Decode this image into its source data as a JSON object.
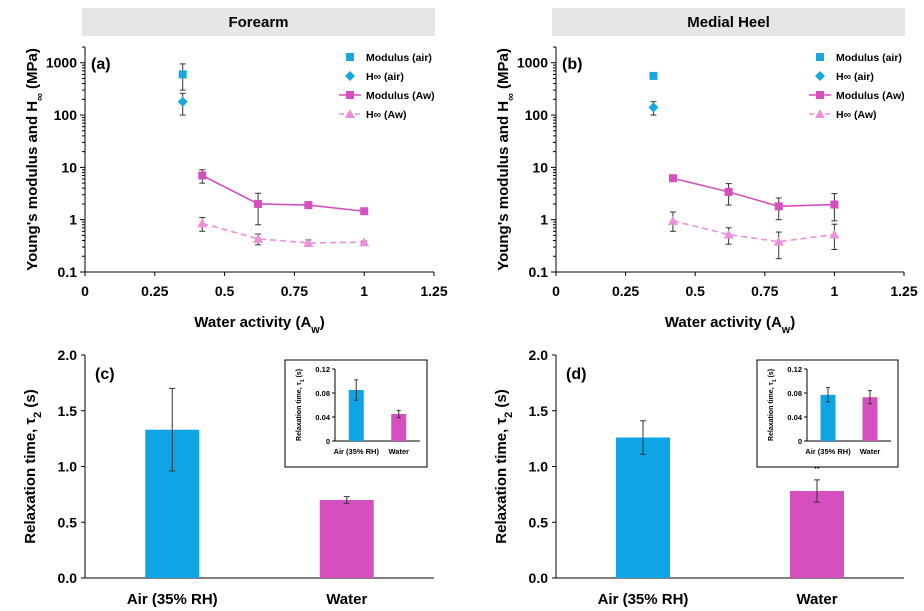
{
  "headers": {
    "left": "Forearm",
    "right": "Medial Heel"
  },
  "colors": {
    "blue": "#1aa7e0",
    "magenta": "#d64fbf",
    "pink": "#ee8fdc",
    "inset_blue": "#0fa5e5"
  },
  "chart_data": [
    {
      "panel": "(a)",
      "type": "scatter",
      "xlabel": "Water activity (A",
      "xlabel_sub": "w",
      "xlabel_end": ")",
      "ylabel": "Young's modulus and H",
      "ylabel_sub": "∞",
      "ylabel_end": " (MPa)",
      "y_scale": "log",
      "xlim": [
        0,
        1.25
      ],
      "ylim": [
        0.1,
        2000
      ],
      "xticks": [
        "0",
        "0.25",
        "0.5",
        "0.75",
        "1",
        "1.25"
      ],
      "yticks": [
        "0.1",
        "1",
        "10",
        "100",
        "1000"
      ],
      "legend_position": "top-right",
      "series": [
        {
          "name": "Modulus (air)",
          "marker": "square",
          "line": "none",
          "color": "#1aa7e0",
          "x": [
            0.35
          ],
          "y": [
            600
          ],
          "err_lo": [
            300
          ],
          "err_hi": [
            350
          ]
        },
        {
          "name": "H∞ (air)",
          "marker": "diamond",
          "line": "none",
          "color": "#1aa7e0",
          "x": [
            0.35
          ],
          "y": [
            180
          ],
          "err_lo": [
            80
          ],
          "err_hi": [
            80
          ]
        },
        {
          "name": "Modulus (Aw)",
          "marker": "square",
          "line": "solid",
          "color": "#d64fbf",
          "x": [
            0.42,
            0.62,
            0.8,
            1.0
          ],
          "y": [
            7.0,
            2.0,
            1.9,
            1.45
          ],
          "err_lo": [
            2.0,
            1.2,
            0.1,
            0.1
          ],
          "err_hi": [
            2.0,
            1.2,
            0.1,
            0.1
          ]
        },
        {
          "name": "H∞ (Aw)",
          "marker": "triangle",
          "line": "dashed",
          "color": "#ee8fdc",
          "x": [
            0.42,
            0.62,
            0.8,
            1.0
          ],
          "y": [
            0.85,
            0.43,
            0.36,
            0.37
          ],
          "err_lo": [
            0.25,
            0.1,
            0.05,
            0.02
          ],
          "err_hi": [
            0.25,
            0.1,
            0.05,
            0.02
          ]
        }
      ]
    },
    {
      "panel": "(b)",
      "type": "scatter",
      "xlabel": "Water activity (A",
      "xlabel_sub": "w",
      "xlabel_end": ")",
      "ylabel": "Young's modulus and H",
      "ylabel_sub": "∞",
      "ylabel_end": " (MPa)",
      "y_scale": "log",
      "xlim": [
        0,
        1.25
      ],
      "ylim": [
        0.1,
        2000
      ],
      "xticks": [
        "0",
        "0.25",
        "0.5",
        "0.75",
        "1",
        "1.25"
      ],
      "yticks": [
        "0.1",
        "1",
        "10",
        "100",
        "1000"
      ],
      "legend_position": "top-right",
      "series": [
        {
          "name": "Modulus (air)",
          "marker": "square",
          "line": "none",
          "color": "#1aa7e0",
          "x": [
            0.35
          ],
          "y": [
            560
          ],
          "err_lo": [
            0
          ],
          "err_hi": [
            0
          ]
        },
        {
          "name": "H∞ (air)",
          "marker": "diamond",
          "line": "none",
          "color": "#1aa7e0",
          "x": [
            0.35
          ],
          "y": [
            140
          ],
          "err_lo": [
            40
          ],
          "err_hi": [
            40
          ]
        },
        {
          "name": "Modulus (Aw)",
          "marker": "square",
          "line": "solid",
          "color": "#d64fbf",
          "x": [
            0.42,
            0.62,
            0.8,
            1.0
          ],
          "y": [
            6.2,
            3.4,
            1.8,
            1.95
          ],
          "err_lo": [
            0.5,
            1.5,
            0.8,
            1.0
          ],
          "err_hi": [
            0.5,
            1.5,
            0.8,
            1.2
          ]
        },
        {
          "name": "H∞ (Aw)",
          "marker": "triangle",
          "line": "dashed",
          "color": "#ee8fdc",
          "x": [
            0.42,
            0.62,
            0.8,
            1.0
          ],
          "y": [
            0.95,
            0.52,
            0.38,
            0.52
          ],
          "err_lo": [
            0.35,
            0.18,
            0.2,
            0.25
          ],
          "err_hi": [
            0.45,
            0.18,
            0.2,
            0.3
          ]
        }
      ]
    },
    {
      "panel": "(c)",
      "type": "bar",
      "categories": [
        "Air (35% RH)",
        "Water"
      ],
      "values": [
        1.33,
        0.7
      ],
      "errors": [
        0.37,
        0.03
      ],
      "colors": [
        "#0fa5e5",
        "#d64fbf"
      ],
      "ylabel": "Relaxation time, τ",
      "ylabel_sub": "2",
      "ylabel_end": " (s)",
      "ylim": [
        0,
        2.0
      ],
      "yticks": [
        "0.0",
        "0.5",
        "1.0",
        "1.5",
        "2.0"
      ],
      "significance": "",
      "inset": {
        "type": "bar",
        "categories": [
          "Air (35% RH)",
          "Water"
        ],
        "values": [
          0.085,
          0.045
        ],
        "errors": [
          0.017,
          0.006
        ],
        "ylabel": "Relaxation time, τ",
        "ylabel_sub": "1",
        "ylabel_end": " (s)",
        "ylim": [
          0,
          0.12
        ],
        "yticks": [
          "0",
          "0.04",
          "0.08",
          "0.12"
        ]
      }
    },
    {
      "panel": "(d)",
      "type": "bar",
      "categories": [
        "Air (35% RH)",
        "Water"
      ],
      "values": [
        1.26,
        0.78
      ],
      "errors": [
        0.15,
        0.1
      ],
      "colors": [
        "#0fa5e5",
        "#d64fbf"
      ],
      "ylabel": "Relaxation time, τ",
      "ylabel_sub": "2",
      "ylabel_end": " (s)",
      "ylim": [
        0,
        2.0
      ],
      "yticks": [
        "0.0",
        "0.5",
        "1.0",
        "1.5",
        "2.0"
      ],
      "significance": "*",
      "inset": {
        "type": "bar",
        "categories": [
          "Air (35% RH)",
          "Water"
        ],
        "values": [
          0.077,
          0.073
        ],
        "errors": [
          0.012,
          0.011
        ],
        "ylabel": "Relaxation time, τ",
        "ylabel_sub": "1",
        "ylabel_end": " (s)",
        "ylim": [
          0,
          0.12
        ],
        "yticks": [
          "0",
          "0.04",
          "0.08",
          "0.12"
        ]
      }
    }
  ]
}
